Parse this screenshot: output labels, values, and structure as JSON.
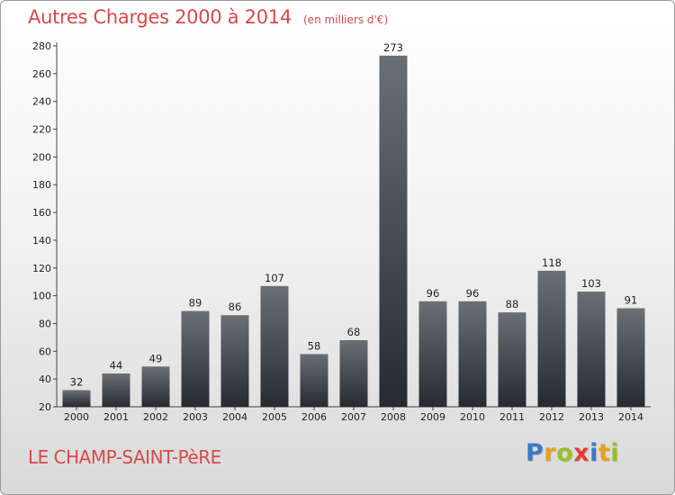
{
  "header": {
    "title": "Autres Charges 2000 à 2014",
    "subtitle": "(en milliers d'€)"
  },
  "footer": {
    "commune": "LE CHAMP-SAINT-PèRE",
    "logo_text": "Proxiti",
    "logo_colors": [
      "#3a78c9",
      "#e8a11c",
      "#9bbf26",
      "#e53d2f",
      "#3a78c9",
      "#e8a11c",
      "#9bbf26"
    ]
  },
  "colors": {
    "title": "#d64a4a",
    "bar_top": "#6a6f76",
    "bar_bottom": "#262b31"
  },
  "chart_data": {
    "type": "bar",
    "categories": [
      "2000",
      "2001",
      "2002",
      "2003",
      "2004",
      "2005",
      "2006",
      "2007",
      "2008",
      "2009",
      "2010",
      "2011",
      "2012",
      "2013",
      "2014"
    ],
    "values": [
      32,
      44,
      49,
      89,
      86,
      107,
      58,
      68,
      273,
      96,
      96,
      88,
      118,
      103,
      91
    ],
    "ylim": [
      20,
      280
    ],
    "yticks": [
      20,
      40,
      60,
      80,
      100,
      120,
      140,
      160,
      180,
      200,
      220,
      240,
      260,
      280
    ],
    "grid": false,
    "data_labels": true
  }
}
